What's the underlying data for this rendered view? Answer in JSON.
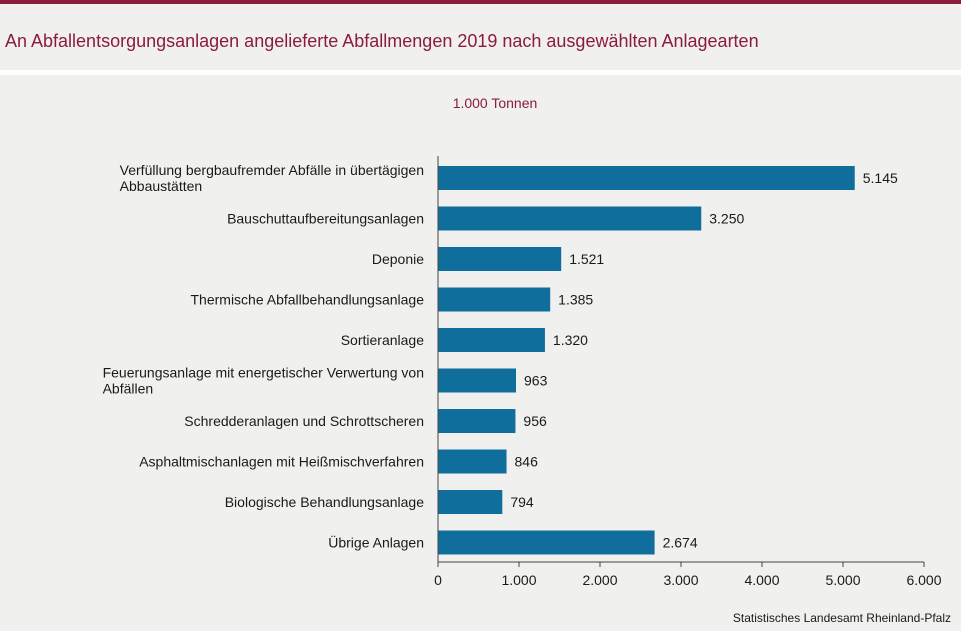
{
  "header": {
    "title": "An Abfallentsorgungsanlagen angelieferte Abfallmengen 2019 nach ausgewählten Anlagearten"
  },
  "source": "Statistisches Landesamt Rheinland-Pfalz",
  "colors": {
    "accent": "#8b1c3a",
    "bar": "#0f6e9c",
    "background": "#f0f0ef",
    "text": "#1a1a1a"
  },
  "chart_data": {
    "type": "bar",
    "orientation": "horizontal",
    "title": "An Abfallentsorgungsanlagen angelieferte Abfallmengen 2019 nach ausgewählten Anlagearten",
    "unit_label": "1.000 Tonnen",
    "categories": [
      [
        "Verfüllung bergbaufremder Abfälle in übertägigen",
        "Abbaustätten"
      ],
      [
        "Bauschuttaufbereitungsanlagen"
      ],
      [
        "Deponie"
      ],
      [
        "Thermische Abfallbehandlungsanlage"
      ],
      [
        "Sortieranlage"
      ],
      [
        "Feuerungsanlage mit energetischer Verwertung von",
        "Abfällen"
      ],
      [
        "Schredderanlagen und Schrottscheren"
      ],
      [
        "Asphaltmischanlagen mit Heißmischverfahren"
      ],
      [
        "Biologische Behandlungsanlage"
      ],
      [
        "Übrige Anlagen"
      ]
    ],
    "values": [
      5145,
      3250,
      1521,
      1385,
      1320,
      963,
      956,
      846,
      794,
      2674
    ],
    "value_labels": [
      "5.145",
      "3.250",
      "1.521",
      "1.385",
      "1.320",
      "963",
      "956",
      "846",
      "794",
      "2.674"
    ],
    "xlim": [
      0,
      6000
    ],
    "xticks": [
      0,
      1000,
      2000,
      3000,
      4000,
      5000,
      6000
    ],
    "xtick_labels": [
      "0",
      "1.000",
      "2.000",
      "3.000",
      "4.000",
      "5.000",
      "6.000"
    ],
    "grid": false,
    "legend": "none"
  }
}
